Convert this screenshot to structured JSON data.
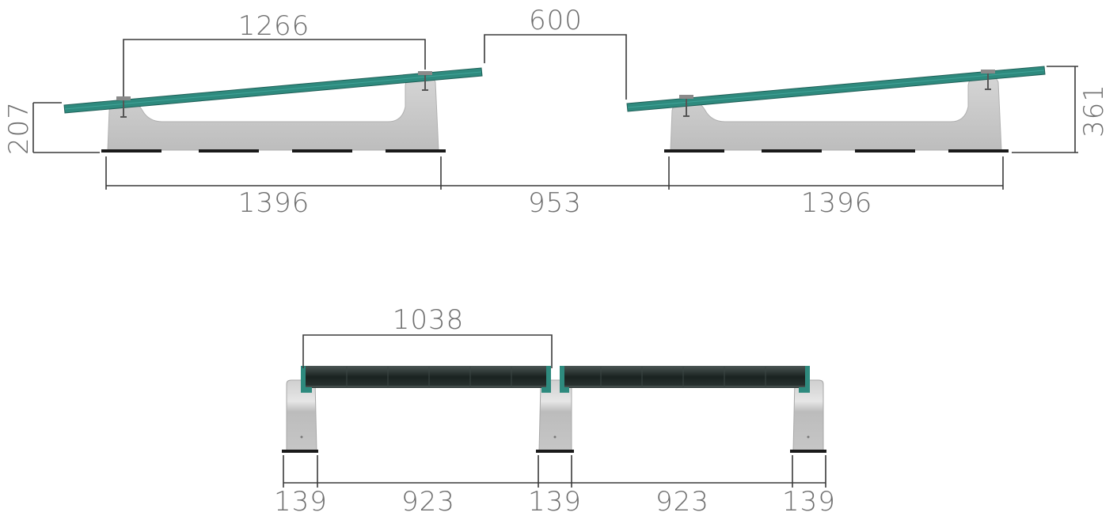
{
  "side_view": {
    "panel_span": "1266",
    "row_gap_top": "600",
    "low_edge_height": "207",
    "overall_height": "361",
    "base_length_left": "1396",
    "row_spacing": "953",
    "base_length_right": "1396"
  },
  "front_view": {
    "panel_width": "1038",
    "segments": [
      "139",
      "923",
      "139",
      "923",
      "139"
    ]
  },
  "colors": {
    "panel": "#2e8a7e",
    "ballast": "#c8c8c8",
    "module_dark": "#1e2a28",
    "dimension_text": "#6e6e6e",
    "dimension_line": "#3a3a3a"
  }
}
